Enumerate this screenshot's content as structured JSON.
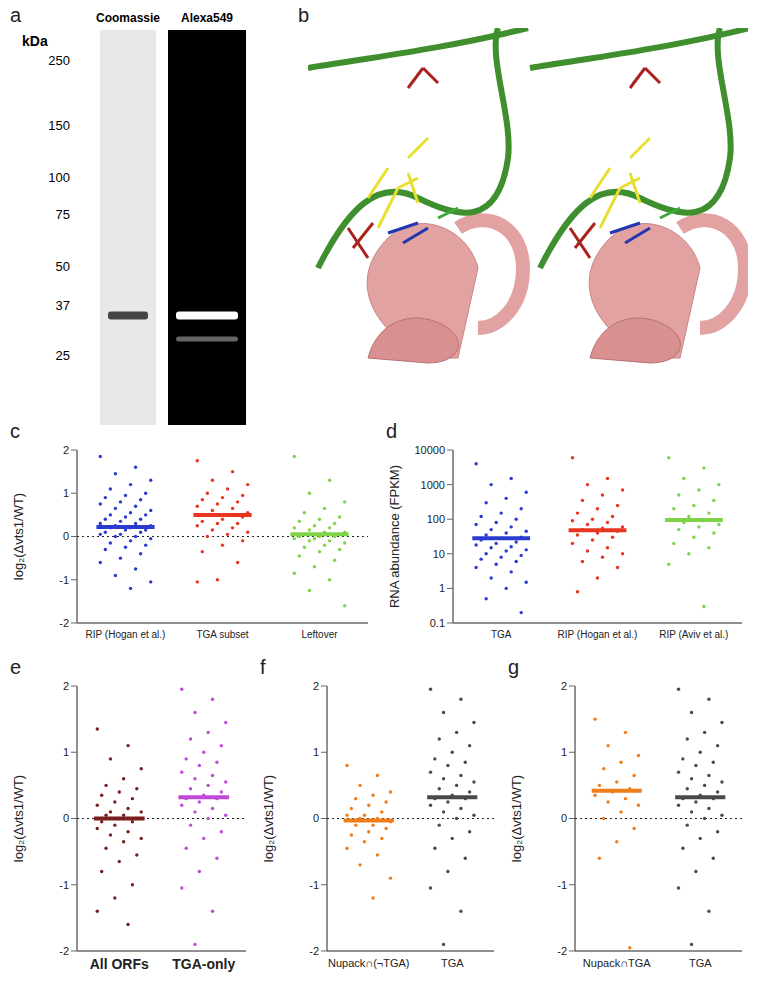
{
  "gel": {
    "panel_label": "a",
    "unit_label": "kDa",
    "lanes": [
      "Coomassie",
      "Alexa549"
    ],
    "ladder": [
      250,
      150,
      100,
      75,
      50,
      37,
      25
    ],
    "bands": [
      {
        "lane": "Coomassie",
        "kDa": 34
      },
      {
        "lane": "Alexa549",
        "kDa": 34
      },
      {
        "lane": "Alexa549",
        "kDa": 28
      }
    ]
  },
  "structure": {
    "panel_label": "b"
  },
  "chart_data": [
    {
      "panel_label": "c",
      "type": "scatter",
      "y_label": "log₂(Δvts1/WT)",
      "categories": [
        "RIP (Hogan et al.)",
        "TGA subset",
        "Leftover"
      ],
      "colors": [
        "#2b3bd0",
        "#e8351f",
        "#7ed348"
      ],
      "values": [
        [
          1.85,
          1.6,
          1.45,
          1.3,
          1.2,
          1.1,
          1.0,
          0.95,
          0.9,
          0.85,
          0.8,
          0.75,
          0.7,
          0.65,
          0.6,
          0.55,
          0.5,
          0.5,
          0.45,
          0.4,
          0.4,
          0.35,
          0.3,
          0.3,
          0.25,
          0.25,
          0.2,
          0.2,
          0.15,
          0.15,
          0.1,
          0.1,
          0.05,
          0.05,
          0.0,
          0.0,
          -0.05,
          -0.1,
          -0.15,
          -0.2,
          -0.25,
          -0.3,
          -0.4,
          -0.5,
          -0.6,
          -0.75,
          -0.9,
          -1.05,
          -1.2
        ],
        [
          1.75,
          1.5,
          1.3,
          1.2,
          1.1,
          1.0,
          0.95,
          0.9,
          0.85,
          0.8,
          0.75,
          0.7,
          0.65,
          0.6,
          0.55,
          0.5,
          0.5,
          0.45,
          0.4,
          0.35,
          0.3,
          0.3,
          0.25,
          0.2,
          0.15,
          0.1,
          0.05,
          0.0,
          -0.1,
          -0.2,
          -0.35,
          -0.6,
          -1.0,
          -1.05
        ],
        [
          1.85,
          1.3,
          1.0,
          0.8,
          0.65,
          0.55,
          0.45,
          0.4,
          0.35,
          0.3,
          0.25,
          0.2,
          0.2,
          0.15,
          0.1,
          0.1,
          0.05,
          0.05,
          0.0,
          0.0,
          0.0,
          -0.05,
          -0.05,
          -0.1,
          -0.1,
          -0.15,
          -0.2,
          -0.25,
          -0.3,
          -0.35,
          -0.45,
          -0.55,
          -0.7,
          -0.85,
          -1.0,
          -1.25,
          -1.6
        ]
      ],
      "means": [
        0.22,
        0.5,
        0.05
      ],
      "zero_line": 0,
      "ylim": [
        -2,
        2
      ],
      "yticks": [
        -2,
        -1,
        0,
        1,
        2
      ]
    },
    {
      "panel_label": "d",
      "type": "scatter",
      "y_label": "RNA abundance (FPKM)",
      "log": "y",
      "categories": [
        "TGA",
        "RIP (Hogan et al.)",
        "RIP (Aviv et al.)"
      ],
      "colors": [
        "#2b3bd0",
        "#e8351f",
        "#7ed348"
      ],
      "values": [
        [
          4000,
          1500,
          1000,
          600,
          400,
          300,
          200,
          150,
          120,
          100,
          80,
          70,
          60,
          50,
          45,
          40,
          35,
          30,
          28,
          25,
          22,
          20,
          18,
          16,
          15,
          13,
          12,
          10,
          9,
          8,
          7,
          6,
          5,
          4,
          3,
          2,
          1.5,
          1,
          0.5,
          0.2
        ],
        [
          6000,
          1500,
          1000,
          700,
          500,
          350,
          250,
          200,
          150,
          120,
          100,
          90,
          80,
          70,
          60,
          55,
          50,
          45,
          40,
          35,
          30,
          25,
          20,
          15,
          12,
          10,
          8,
          6,
          4,
          2,
          0.8
        ],
        [
          6000,
          3000,
          1500,
          1000,
          700,
          500,
          350,
          250,
          200,
          150,
          120,
          100,
          90,
          80,
          70,
          60,
          50,
          40,
          30,
          20,
          15,
          10,
          5,
          0.3
        ]
      ],
      "means": [
        28,
        48,
        95
      ],
      "ylim": [
        0.1,
        10000
      ],
      "yticks": [
        0.1,
        1,
        10,
        100,
        1000,
        10000
      ]
    },
    {
      "panel_label": "e",
      "type": "scatter",
      "y_label": "log₂(Δvts1/WT)",
      "categories": [
        "All ORFs",
        "TGA-only"
      ],
      "colors": [
        "#7a1f1f",
        "#c04ad8"
      ],
      "values": [
        [
          1.35,
          1.1,
          0.9,
          0.75,
          0.6,
          0.5,
          0.45,
          0.4,
          0.35,
          0.3,
          0.25,
          0.2,
          0.15,
          0.1,
          0.1,
          0.05,
          0.05,
          0.0,
          0.0,
          -0.05,
          -0.05,
          -0.1,
          -0.15,
          -0.2,
          -0.25,
          -0.3,
          -0.35,
          -0.45,
          -0.55,
          -0.65,
          -0.8,
          -1.0,
          -1.2,
          -1.4,
          -1.6
        ],
        [
          1.95,
          1.8,
          1.6,
          1.45,
          1.3,
          1.2,
          1.1,
          1.0,
          0.9,
          0.85,
          0.8,
          0.7,
          0.65,
          0.6,
          0.55,
          0.5,
          0.45,
          0.4,
          0.35,
          0.3,
          0.3,
          0.25,
          0.2,
          0.15,
          0.1,
          0.05,
          0.0,
          -0.1,
          -0.2,
          -0.3,
          -0.45,
          -0.6,
          -0.8,
          -1.05,
          -1.4,
          -1.9
        ]
      ],
      "means": [
        0,
        0.32
      ],
      "zero_line": 0,
      "ylim": [
        -2,
        2
      ],
      "yticks": [
        -2,
        -1,
        0,
        1,
        2
      ]
    },
    {
      "panel_label": "f",
      "type": "scatter",
      "y_label": "log₂(Δvts1/WT)",
      "categories": [
        "Nupack∩(¬TGA)",
        "TGA"
      ],
      "colors": [
        "#f07c1a",
        "#4a4a4a"
      ],
      "values": [
        [
          0.8,
          0.65,
          0.5,
          0.4,
          0.35,
          0.3,
          0.25,
          0.2,
          0.15,
          0.1,
          0.05,
          0.05,
          0.0,
          0.0,
          -0.05,
          -0.1,
          -0.1,
          -0.15,
          -0.2,
          -0.25,
          -0.3,
          -0.35,
          -0.45,
          -0.55,
          -0.7,
          -0.9,
          -1.2
        ],
        [
          1.95,
          1.8,
          1.6,
          1.45,
          1.3,
          1.2,
          1.1,
          1.0,
          0.9,
          0.85,
          0.8,
          0.7,
          0.65,
          0.6,
          0.55,
          0.5,
          0.45,
          0.4,
          0.35,
          0.3,
          0.3,
          0.25,
          0.2,
          0.15,
          0.1,
          0.05,
          0.0,
          -0.1,
          -0.2,
          -0.3,
          -0.45,
          -0.6,
          -0.8,
          -1.05,
          -1.4,
          -1.9
        ]
      ],
      "means": [
        -0.03,
        0.32
      ],
      "zero_line": 0,
      "ylim": [
        -2,
        2
      ],
      "yticks": [
        -2,
        -1,
        0,
        1,
        2
      ]
    },
    {
      "panel_label": "g",
      "type": "scatter",
      "y_label": "log₂(Δvts1/WT)",
      "categories": [
        "Nupack∩TGA",
        "TGA"
      ],
      "colors": [
        "#f07c1a",
        "#4a4a4a"
      ],
      "values": [
        [
          1.5,
          1.3,
          1.1,
          0.95,
          0.85,
          0.75,
          0.65,
          0.55,
          0.5,
          0.45,
          0.4,
          0.35,
          0.3,
          0.25,
          0.2,
          0.1,
          0.0,
          -0.15,
          -0.35,
          -0.6,
          -1.95
        ],
        [
          1.95,
          1.8,
          1.6,
          1.45,
          1.3,
          1.2,
          1.1,
          1.0,
          0.9,
          0.85,
          0.8,
          0.7,
          0.65,
          0.6,
          0.55,
          0.5,
          0.45,
          0.4,
          0.35,
          0.3,
          0.3,
          0.25,
          0.2,
          0.15,
          0.1,
          0.05,
          0.0,
          -0.1,
          -0.2,
          -0.3,
          -0.45,
          -0.6,
          -0.8,
          -1.05,
          -1.4,
          -1.9
        ]
      ],
      "means": [
        0.42,
        0.32
      ],
      "zero_line": 0,
      "ylim": [
        -2,
        2
      ],
      "yticks": [
        -2,
        -1,
        0,
        1,
        2
      ]
    }
  ]
}
